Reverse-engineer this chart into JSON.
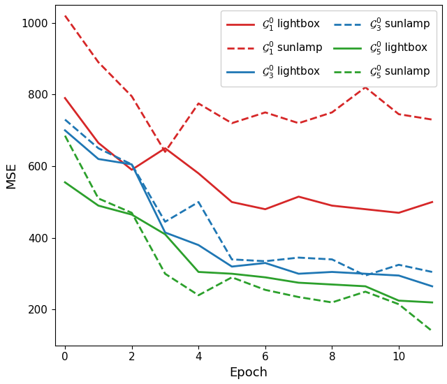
{
  "epochs": [
    0,
    1,
    2,
    3,
    4,
    5,
    6,
    7,
    8,
    9,
    10,
    11
  ],
  "G1_lightbox": [
    790,
    665,
    590,
    650,
    580,
    500,
    480,
    515,
    490,
    480,
    470,
    500
  ],
  "G3_lightbox": [
    700,
    620,
    605,
    415,
    380,
    320,
    330,
    300,
    305,
    300,
    295,
    265
  ],
  "G5_lightbox": [
    555,
    490,
    465,
    410,
    305,
    300,
    290,
    275,
    270,
    265,
    225,
    220
  ],
  "G1_sunlamp": [
    1020,
    890,
    795,
    640,
    775,
    720,
    750,
    720,
    750,
    820,
    745,
    730
  ],
  "G3_sunlamp": [
    730,
    650,
    605,
    445,
    500,
    340,
    335,
    345,
    340,
    295,
    325,
    305
  ],
  "G5_sunlamp": [
    685,
    510,
    470,
    300,
    240,
    290,
    255,
    235,
    220,
    250,
    215,
    140
  ],
  "colors": {
    "red": "#d62728",
    "blue": "#1f77b4",
    "green": "#2ca02c"
  },
  "ylabel": "MSE",
  "xlabel": "Epoch",
  "ylim": [
    100,
    1050
  ],
  "xlim": [
    -0.3,
    11.3
  ],
  "legend_labels": {
    "G1_lightbox": "$\\mathcal{G}_1^0$ lightbox",
    "G3_lightbox": "$\\mathcal{G}_3^0$ lightbox",
    "G5_lightbox": "$\\mathcal{G}_5^0$ lightbox",
    "G1_sunlamp": "$\\mathcal{G}_1^0$ sunlamp",
    "G3_sunlamp": "$\\mathcal{G}_3^0$ sunlamp",
    "G5_sunlamp": "$\\mathcal{G}_5^0$ sunlamp"
  },
  "xticks": [
    0,
    2,
    4,
    6,
    8,
    10
  ],
  "yticks": [
    200,
    400,
    600,
    800,
    1000
  ],
  "figsize": [
    6.4,
    5.5
  ],
  "dpi": 100,
  "linewidth": 2.0,
  "legend_fontsize": 11,
  "axis_fontsize": 13,
  "tick_fontsize": 11
}
